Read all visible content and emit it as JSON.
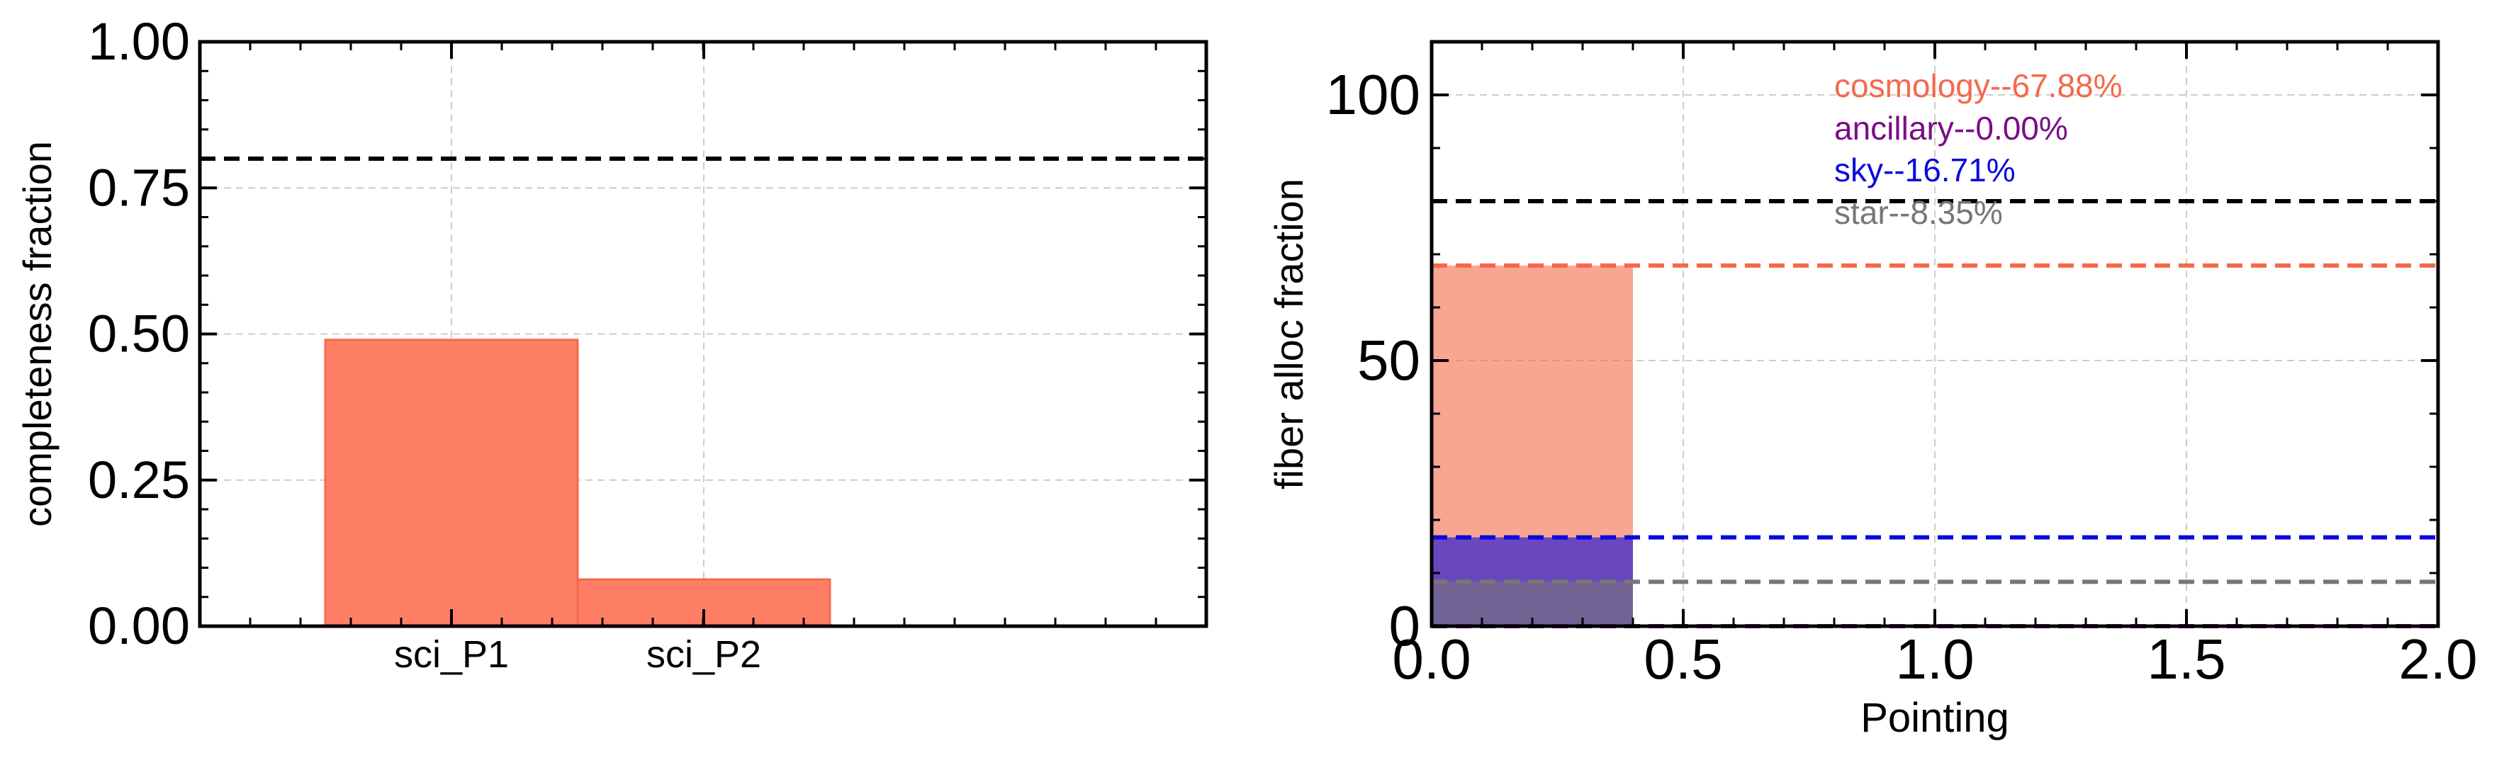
{
  "chart_data": [
    {
      "type": "bar",
      "categories": [
        "sci_P1",
        "sci_P2"
      ],
      "values": [
        0.49,
        0.08
      ],
      "ylabel": "completeness fraction",
      "xlabel": "",
      "ylim": [
        0,
        1.0
      ],
      "yticks": [
        "0.00",
        "0.25",
        "0.50",
        "0.75",
        "1.00"
      ],
      "reference_line": {
        "y": 0.8,
        "color": "#000000",
        "style": "dashed"
      },
      "bar_color": "#ff7f66",
      "grid": true
    },
    {
      "type": "bar",
      "xlabel": "Pointing",
      "ylabel": "fiber alloc fraction",
      "xlim": [
        0,
        2.0
      ],
      "ylim": [
        0,
        110
      ],
      "xticks": [
        "0.0",
        "0.5",
        "1.0",
        "1.5",
        "2.0"
      ],
      "yticks": [
        "0",
        "50",
        "100"
      ],
      "bar_x_range": [
        0,
        0.4
      ],
      "series": [
        {
          "name": "cosmology",
          "value": 67.88,
          "label": "cosmology--67.88%",
          "color": "#f4694a"
        },
        {
          "name": "ancillary",
          "value": 0.0,
          "label": "ancillary--0.00%",
          "color": "#7b0c87"
        },
        {
          "name": "sky",
          "value": 16.71,
          "label": "sky--16.71%",
          "color": "#0a0adc"
        },
        {
          "name": "star",
          "value": 8.35,
          "label": "star--8.35%",
          "color": "#777777"
        }
      ],
      "reference_line": {
        "y": 80,
        "color": "#000000",
        "style": "dashed"
      },
      "grid": true
    }
  ]
}
